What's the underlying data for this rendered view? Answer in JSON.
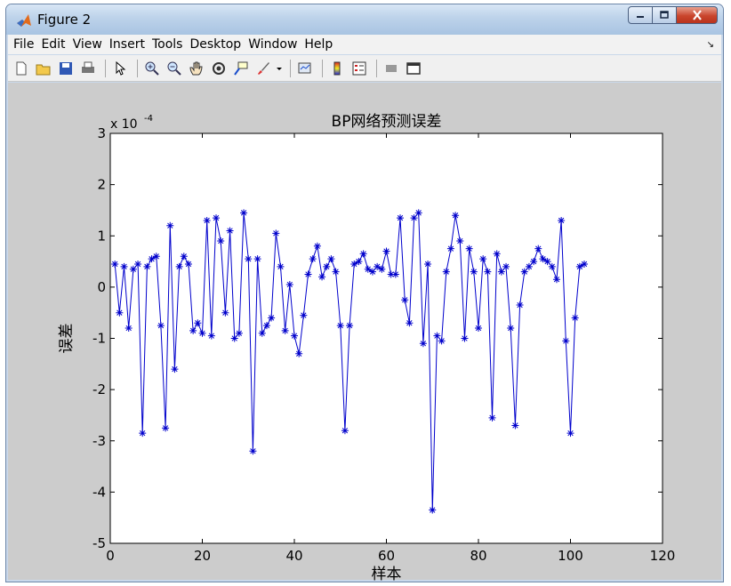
{
  "window": {
    "title": "Figure 2",
    "buttons": {
      "minimize": "minimize-icon",
      "maximize": "maximize-icon",
      "close": "close-icon"
    }
  },
  "menu": [
    "File",
    "Edit",
    "View",
    "Insert",
    "Tools",
    "Desktop",
    "Window",
    "Help"
  ],
  "toolbar": [
    "new-figure-icon",
    "open-icon",
    "save-icon",
    "print-icon",
    "pointer-icon",
    "zoom-in-icon",
    "zoom-out-icon",
    "pan-icon",
    "rotate-3d-icon",
    "data-cursor-icon",
    "brush-icon",
    "link-plot-icon",
    "colorbar-icon",
    "legend-icon",
    "hide-plot-tools-icon",
    "show-plot-tools-icon"
  ],
  "chart_data": {
    "type": "line",
    "title": "BP网络预测误差",
    "xlabel": "样本",
    "ylabel": "误差",
    "y_exponent_label": "x 10",
    "y_exponent": "-4",
    "xlim": [
      0,
      120
    ],
    "ylim": [
      -5,
      3
    ],
    "xticks": [
      "0",
      "20",
      "40",
      "60",
      "80",
      "100",
      "120"
    ],
    "yticks": [
      "-5",
      "-4",
      "-3",
      "-2",
      "-1",
      "0",
      "1",
      "2",
      "3"
    ],
    "marker": "*",
    "color": "#0000cc",
    "grid": false,
    "x": [
      1,
      2,
      3,
      4,
      5,
      6,
      7,
      8,
      9,
      10,
      11,
      12,
      13,
      14,
      15,
      16,
      17,
      18,
      19,
      20,
      21,
      22,
      23,
      24,
      25,
      26,
      27,
      28,
      29,
      30,
      31,
      32,
      33,
      34,
      35,
      36,
      37,
      38,
      39,
      40,
      41,
      42,
      43,
      44,
      45,
      46,
      47,
      48,
      49,
      50,
      51,
      52,
      53,
      54,
      55,
      56,
      57,
      58,
      59,
      60,
      61,
      62,
      63,
      64,
      65,
      66,
      67,
      68,
      69,
      70,
      71,
      72,
      73,
      74,
      75,
      76,
      77,
      78,
      79,
      80,
      81,
      82,
      83,
      84,
      85,
      86,
      87,
      88,
      89,
      90,
      91,
      92,
      93,
      94,
      95,
      96,
      97,
      98,
      99,
      100,
      101,
      102,
      103
    ],
    "values": [
      0.45,
      -0.5,
      0.4,
      -0.8,
      0.35,
      0.45,
      -2.85,
      0.4,
      0.55,
      0.6,
      -0.75,
      -2.75,
      1.2,
      -1.6,
      0.4,
      0.6,
      0.45,
      -0.85,
      -0.7,
      -0.9,
      1.3,
      -0.95,
      1.35,
      0.9,
      -0.5,
      1.1,
      -1.0,
      -0.9,
      1.45,
      0.55,
      -3.2,
      0.55,
      -0.9,
      -0.75,
      -0.6,
      1.05,
      0.4,
      -0.85,
      0.05,
      -0.95,
      -1.3,
      -0.55,
      0.25,
      0.55,
      0.8,
      0.2,
      0.4,
      0.55,
      0.3,
      -0.75,
      -2.8,
      -0.75,
      0.45,
      0.5,
      0.65,
      0.35,
      0.3,
      0.4,
      0.35,
      0.7,
      0.25,
      0.25,
      1.35,
      -0.25,
      -0.7,
      1.35,
      1.45,
      -1.1,
      0.45,
      -4.35,
      -0.95,
      -1.05,
      0.3,
      0.75,
      1.4,
      0.9,
      -1.0,
      0.75,
      0.3,
      -0.8,
      0.55,
      0.3,
      -2.55,
      0.65,
      0.3,
      0.4,
      -0.8,
      -2.7,
      -0.35,
      0.3,
      0.4,
      0.5,
      0.75,
      0.55,
      0.5,
      0.4,
      0.15,
      1.3,
      -1.05,
      -2.85,
      -0.6,
      0.4,
      0.45
    ]
  }
}
